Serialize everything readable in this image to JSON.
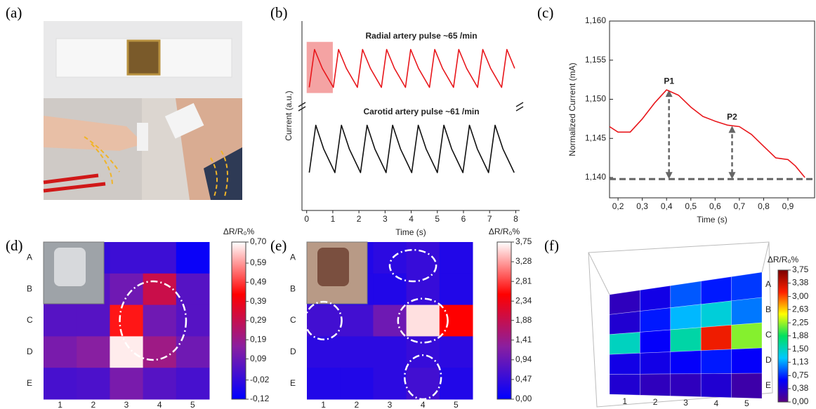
{
  "chart_data": [
    {
      "type": "image",
      "panel_label": "(a)"
    },
    {
      "type": "line",
      "panel_label": "(b)",
      "xlabel": "Time (s)",
      "ylabel": "Current (a.u.)",
      "xlim": [
        -0.18,
        8.15
      ],
      "xticks": [
        0,
        1,
        2,
        3,
        4,
        5,
        6,
        7,
        8
      ],
      "ylim": [
        0,
        20
      ],
      "highlight": {
        "x": [
          0,
          1
        ],
        "color": "#f4a3a3"
      },
      "series": [
        {
          "name": "Radial artery pulse  ~65 /min",
          "color": "#e8161b",
          "x": [
            0.1,
            0.3,
            0.6,
            1.02,
            1.22,
            1.52,
            1.94,
            2.14,
            2.44,
            2.86,
            3.06,
            3.36,
            3.78,
            3.98,
            4.28,
            4.7,
            4.9,
            5.2,
            5.62,
            5.82,
            6.12,
            6.54,
            6.74,
            7.04,
            7.46,
            7.66,
            7.96
          ],
          "values": [
            13,
            17,
            15,
            13,
            17,
            15,
            13,
            17,
            15,
            13,
            17,
            15,
            13,
            17,
            15,
            13,
            17,
            15,
            13,
            17,
            15,
            13,
            17,
            15,
            13,
            17,
            15
          ]
        },
        {
          "name": "Carotid artery pulse ~61 /min",
          "color": "#111111",
          "x": [
            0.1,
            0.35,
            0.65,
            1.08,
            1.33,
            1.63,
            2.06,
            2.31,
            2.61,
            3.04,
            3.29,
            3.59,
            4.02,
            4.27,
            4.57,
            5.0,
            5.25,
            5.55,
            5.98,
            6.23,
            6.53,
            6.96,
            7.21,
            7.51,
            7.94
          ],
          "values": [
            4,
            9,
            6.5,
            4,
            9,
            6.5,
            4,
            9,
            6.5,
            4,
            9,
            6.5,
            4,
            9,
            6.5,
            4,
            9,
            6.5,
            4,
            9,
            6.5,
            4,
            9,
            6.5,
            4
          ]
        }
      ]
    },
    {
      "type": "line",
      "panel_label": "(c)",
      "xlabel": "Time (s)",
      "ylabel": "Normalized Current (mA)",
      "xlim": [
        0.165,
        1.01
      ],
      "ylim": [
        1.1374,
        1.16
      ],
      "xticks": [
        {
          "value": 0.2,
          "label": "0,2"
        },
        {
          "value": 0.3,
          "label": "0,3"
        },
        {
          "value": 0.4,
          "label": "0,4"
        },
        {
          "value": 0.5,
          "label": "0,5"
        },
        {
          "value": 0.6,
          "label": "0,6"
        },
        {
          "value": 0.7,
          "label": "0,7"
        },
        {
          "value": 0.8,
          "label": "0,8"
        },
        {
          "value": 0.9,
          "label": "0,9"
        }
      ],
      "yticks": [
        {
          "value": 1.14,
          "label": "1,140"
        },
        {
          "value": 1.145,
          "label": "1,145"
        },
        {
          "value": 1.15,
          "label": "1,150"
        },
        {
          "value": 1.155,
          "label": "1,155"
        },
        {
          "value": 1.16,
          "label": "1,160"
        }
      ],
      "baseline": 1.1398,
      "annotations": [
        {
          "text": "P1",
          "x": 0.41,
          "y": 1.1512
        },
        {
          "text": "P2",
          "x": 0.67,
          "y": 1.1466
        }
      ],
      "series": [
        {
          "color": "#e8161b",
          "x": [
            0.165,
            0.2,
            0.25,
            0.3,
            0.35,
            0.4,
            0.45,
            0.5,
            0.55,
            0.6,
            0.65,
            0.7,
            0.75,
            0.8,
            0.85,
            0.9,
            0.93,
            0.97
          ],
          "values": [
            1.1465,
            1.1458,
            1.1458,
            1.1475,
            1.1495,
            1.1512,
            1.1505,
            1.149,
            1.1478,
            1.1472,
            1.1467,
            1.1465,
            1.1455,
            1.144,
            1.1425,
            1.1423,
            1.1415,
            1.14
          ]
        }
      ]
    },
    {
      "type": "heatmap",
      "panel_label": "(d)",
      "rows": [
        "A",
        "B",
        "C",
        "D",
        "E"
      ],
      "columns": [
        "1",
        "2",
        "3",
        "4",
        "5"
      ],
      "values": [
        [
          -0.02,
          -0.02,
          0.0,
          0.0,
          -0.1
        ],
        [
          0.05,
          0.05,
          0.1,
          0.3,
          0.05
        ],
        [
          0.05,
          0.05,
          0.45,
          0.1,
          0.05
        ],
        [
          0.12,
          0.15,
          0.68,
          0.2,
          0.1
        ],
        [
          0.02,
          0.03,
          0.12,
          0.05,
          0.02
        ]
      ],
      "colorbar_title": "ΔR/R₀%",
      "zlim": [
        -0.12,
        0.7
      ],
      "colormap": [
        "#0000ff",
        "#8a1fa0",
        "#ff0000",
        "#ffffff"
      ],
      "zticks": [
        {
          "value": -0.12,
          "label": "-0,12"
        },
        {
          "value": -0.02,
          "label": "-0,02"
        },
        {
          "value": 0.09,
          "label": "0,09"
        },
        {
          "value": 0.19,
          "label": "0,19"
        },
        {
          "value": 0.29,
          "label": "0,29"
        },
        {
          "value": 0.39,
          "label": "0,39"
        },
        {
          "value": 0.49,
          "label": "0,49"
        },
        {
          "value": 0.59,
          "label": "0,59"
        },
        {
          "value": 0.7,
          "label": "0,70"
        }
      ]
    },
    {
      "type": "heatmap",
      "panel_label": "(e)",
      "rows": [
        "A",
        "B",
        "C",
        "D",
        "E"
      ],
      "columns": [
        "1",
        "2",
        "3",
        "4",
        "5"
      ],
      "values": [
        [
          0.3,
          0.3,
          0.4,
          0.5,
          0.3
        ],
        [
          0.3,
          0.3,
          0.3,
          0.5,
          0.3
        ],
        [
          0.6,
          0.6,
          1.0,
          3.6,
          2.5
        ],
        [
          0.4,
          0.4,
          0.4,
          0.5,
          0.4
        ],
        [
          0.3,
          0.3,
          0.4,
          0.6,
          0.3
        ]
      ],
      "colorbar_title": "ΔR/R₀%",
      "zlim": [
        0,
        3.75
      ],
      "colormap": [
        "#0000ff",
        "#8a1fa0",
        "#ff0000",
        "#ffffff"
      ],
      "zticks": [
        {
          "value": 0,
          "label": "0,00"
        },
        {
          "value": 0.47,
          "label": "0,47"
        },
        {
          "value": 0.94,
          "label": "0,94"
        },
        {
          "value": 1.41,
          "label": "1,41"
        },
        {
          "value": 1.88,
          "label": "1,88"
        },
        {
          "value": 2.34,
          "label": "2,34"
        },
        {
          "value": 2.81,
          "label": "2,81"
        },
        {
          "value": 3.28,
          "label": "3,28"
        },
        {
          "value": 3.75,
          "label": "3,75"
        }
      ]
    },
    {
      "type": "surface",
      "panel_label": "(f)",
      "rows": [
        "A",
        "B",
        "C",
        "D",
        "E"
      ],
      "columns": [
        "1",
        "2",
        "3",
        "4",
        "5"
      ],
      "values": [
        [
          0.3,
          0.5,
          0.9,
          0.7,
          0.8
        ],
        [
          0.4,
          0.7,
          1.2,
          1.4,
          1.0
        ],
        [
          1.5,
          0.6,
          1.6,
          3.2,
          2.2
        ],
        [
          0.5,
          0.5,
          0.6,
          0.7,
          0.6
        ],
        [
          0.4,
          0.3,
          0.3,
          0.4,
          0.2
        ]
      ],
      "colorbar_title": "ΔR/R₀%",
      "zlim": [
        0,
        3.75
      ],
      "colormap": [
        "#5a0080",
        "#0000ff",
        "#00c8ff",
        "#00e060",
        "#ffff00",
        "#ff2000",
        "#7a0000"
      ],
      "zticks": [
        {
          "value": 0,
          "label": "0,00"
        },
        {
          "value": 0.38,
          "label": "0,38"
        },
        {
          "value": 0.75,
          "label": "0,75"
        },
        {
          "value": 1.13,
          "label": "1,13"
        },
        {
          "value": 1.5,
          "label": "1,50"
        },
        {
          "value": 1.88,
          "label": "1,88"
        },
        {
          "value": 2.25,
          "label": "2,25"
        },
        {
          "value": 2.63,
          "label": "2,63"
        },
        {
          "value": 3.0,
          "label": "3,00"
        },
        {
          "value": 3.38,
          "label": "3,38"
        },
        {
          "value": 3.75,
          "label": "3,75"
        }
      ]
    }
  ]
}
